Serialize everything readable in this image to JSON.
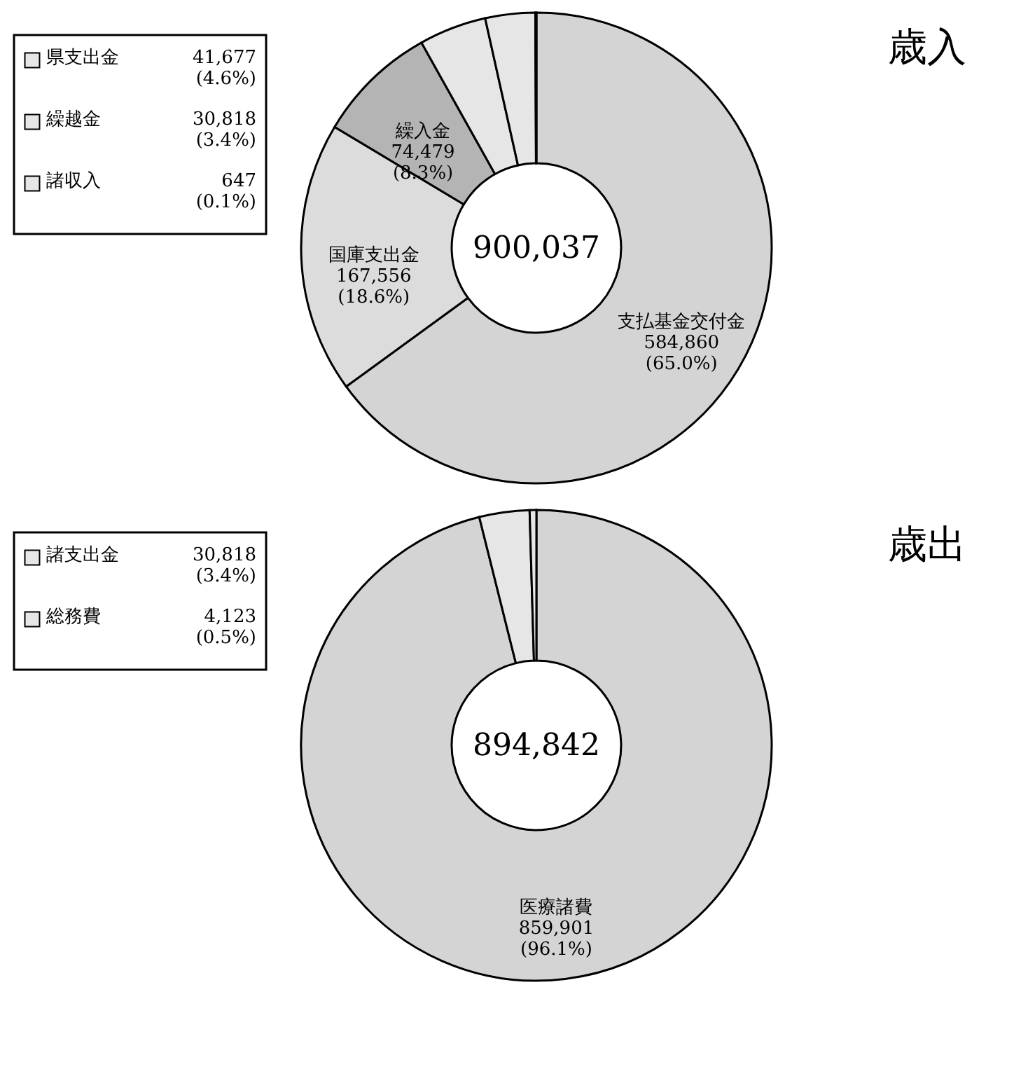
{
  "chart_data": [
    {
      "type": "donut",
      "title": "歳入",
      "categories": [
        "支払基金交付金",
        "国庫支出金",
        "繰入金",
        "県支出金",
        "繰越金",
        "諸収入"
      ],
      "values": [
        584860,
        167556,
        74479,
        41677,
        30818,
        647
      ],
      "value_labels": [
        "584,860 (65.0%)",
        "167,556 (18.6%)",
        "74,479 (8.3%)",
        "41,677 (4.6%)",
        "30,818 (3.4%)",
        "647 (0.1%)"
      ],
      "colors": [
        "#d4d4d4",
        "#dcdcdc",
        "#b4b4b4",
        "#e6e6e6",
        "#e6e6e6",
        "#e6e6e6"
      ],
      "annotations": [
        "900,037"
      ],
      "legend": "top left"
    },
    {
      "type": "donut",
      "title": "歳出",
      "categories": [
        "医療諸費",
        "諸支出金",
        "総務費"
      ],
      "values": [
        859901,
        30818,
        4123
      ],
      "value_labels": [
        "859,901 (96.1%)",
        "30,818 (3.4%)",
        "4,123 (0.5%)"
      ],
      "colors": [
        "#d4d4d4",
        "#e6e6e6",
        "#e6e6e6"
      ],
      "annotations": [
        "894,842"
      ],
      "legend": "top left"
    }
  ]
}
